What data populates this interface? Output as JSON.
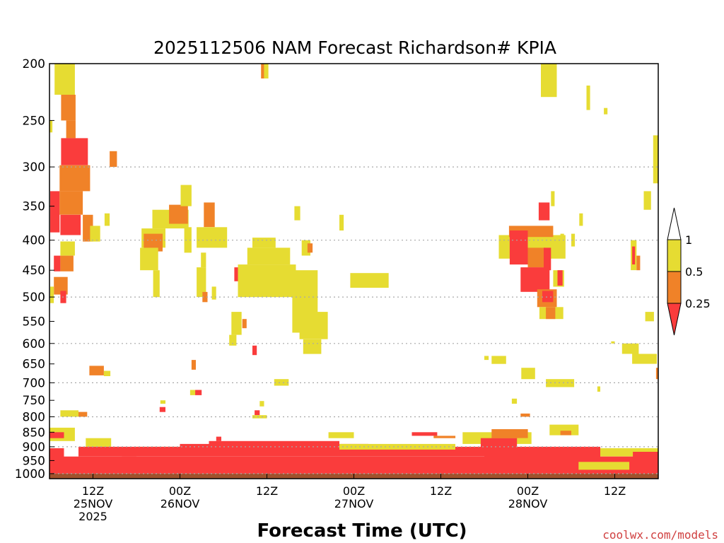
{
  "chart_data": {
    "type": "heatmap",
    "title": "2025112506 NAM Forecast Richardson# KPIA",
    "xlabel": "Forecast Time (UTC)",
    "ylabel": "",
    "y_scale": "log-pressure",
    "ylim": [
      1020,
      200
    ],
    "y_ticks": [
      200,
      250,
      300,
      350,
      400,
      450,
      500,
      550,
      600,
      650,
      700,
      750,
      800,
      850,
      900,
      950,
      1000
    ],
    "gridlines_at": [
      300,
      400,
      500,
      600,
      700,
      800,
      900,
      1000
    ],
    "xlim": [
      "2025-11-25 06Z",
      "2025-11-28 18Z"
    ],
    "x_ticks": [
      {
        "hour": 6,
        "line1": "12Z",
        "line2": "25NOV",
        "line3": "2025"
      },
      {
        "hour": 18,
        "line1": "00Z",
        "line2": "26NOV",
        "line3": ""
      },
      {
        "hour": 30,
        "line1": "12Z",
        "line2": "",
        "line3": ""
      },
      {
        "hour": 42,
        "line1": "00Z",
        "line2": "27NOV",
        "line3": ""
      },
      {
        "hour": 54,
        "line1": "12Z",
        "line2": "",
        "line3": ""
      },
      {
        "hour": 66,
        "line1": "00Z",
        "line2": "28NOV",
        "line3": ""
      },
      {
        "hour": 78,
        "line1": "12Z",
        "line2": "",
        "line3": ""
      }
    ],
    "legend": {
      "placement": "right",
      "levels": [
        "1",
        "0.5",
        "0.25"
      ],
      "bins": [
        {
          "range": ">1",
          "color": "#ffffff"
        },
        {
          "range": "0.5-1",
          "color": "#e6dc32"
        },
        {
          "range": "0.25-0.5",
          "color": "#f08228"
        },
        {
          "range": "<0.25",
          "color": "#fa3c3c"
        }
      ]
    },
    "colors": {
      "low": "#fa3c3c",
      "mid": "#f08228",
      "high": "#e6dc32",
      "ground": "#a0522d"
    },
    "cells": [
      {
        "t0": 0.7,
        "t1": 3.5,
        "p0": 200,
        "p1": 226,
        "c": "high"
      },
      {
        "t0": 1.6,
        "t1": 3.6,
        "p0": 226,
        "p1": 250,
        "c": "mid"
      },
      {
        "t0": 2.3,
        "t1": 3.6,
        "p0": 250,
        "p1": 268,
        "c": "mid"
      },
      {
        "t0": 1.6,
        "t1": 5.3,
        "p0": 268,
        "p1": 298,
        "c": "low"
      },
      {
        "t0": 1.4,
        "t1": 5.6,
        "p0": 298,
        "p1": 330,
        "c": "mid"
      },
      {
        "t0": 0.1,
        "t1": 1.4,
        "p0": 330,
        "p1": 388,
        "c": "low"
      },
      {
        "t0": 1.4,
        "t1": 4.6,
        "p0": 330,
        "p1": 362,
        "c": "mid"
      },
      {
        "t0": 1.5,
        "t1": 4.3,
        "p0": 362,
        "p1": 392,
        "c": "low"
      },
      {
        "t0": 4.6,
        "t1": 6.0,
        "p0": 362,
        "p1": 402,
        "c": "mid"
      },
      {
        "t0": 1.5,
        "t1": 3.5,
        "p0": 402,
        "p1": 425,
        "c": "high"
      },
      {
        "t0": 0.6,
        "t1": 1.5,
        "p0": 425,
        "p1": 452,
        "c": "low"
      },
      {
        "t0": 1.5,
        "t1": 3.3,
        "p0": 425,
        "p1": 452,
        "c": "mid"
      },
      {
        "t0": 0.6,
        "t1": 2.5,
        "p0": 462,
        "p1": 495,
        "c": "mid"
      },
      {
        "t0": 0.1,
        "t1": 0.6,
        "p0": 480,
        "p1": 512,
        "c": "high"
      },
      {
        "t0": 1.5,
        "t1": 2.3,
        "p0": 488,
        "p1": 512,
        "c": "low"
      },
      {
        "t0": 0.0,
        "t1": 0.4,
        "p0": 250,
        "p1": 262,
        "c": "high"
      },
      {
        "t0": 8.3,
        "t1": 9.3,
        "p0": 282,
        "p1": 300,
        "c": "mid"
      },
      {
        "t0": 7.6,
        "t1": 8.3,
        "p0": 360,
        "p1": 378,
        "c": "high"
      },
      {
        "t0": 5.6,
        "t1": 7.0,
        "p0": 378,
        "p1": 402,
        "c": "high"
      },
      {
        "t0": 14.2,
        "t1": 19.2,
        "p0": 355,
        "p1": 382,
        "c": "high"
      },
      {
        "t0": 16.5,
        "t1": 19.1,
        "p0": 348,
        "p1": 375,
        "c": "mid"
      },
      {
        "t0": 12.7,
        "t1": 16.0,
        "p0": 382,
        "p1": 412,
        "c": "high"
      },
      {
        "t0": 13.0,
        "t1": 15.6,
        "p0": 390,
        "p1": 418,
        "c": "mid"
      },
      {
        "t0": 12.5,
        "t1": 15.0,
        "p0": 412,
        "p1": 450,
        "c": "high"
      },
      {
        "t0": 14.3,
        "t1": 15.2,
        "p0": 450,
        "p1": 500,
        "c": "high"
      },
      {
        "t0": 18.1,
        "t1": 19.6,
        "p0": 322,
        "p1": 350,
        "c": "high"
      },
      {
        "t0": 21.3,
        "t1": 22.8,
        "p0": 345,
        "p1": 380,
        "c": "mid"
      },
      {
        "t0": 20.3,
        "t1": 24.5,
        "p0": 380,
        "p1": 412,
        "c": "high"
      },
      {
        "t0": 18.6,
        "t1": 19.6,
        "p0": 380,
        "p1": 420,
        "c": "high"
      },
      {
        "t0": 20.9,
        "t1": 21.6,
        "p0": 420,
        "p1": 445,
        "c": "high"
      },
      {
        "t0": 20.3,
        "t1": 21.6,
        "p0": 445,
        "p1": 500,
        "c": "high"
      },
      {
        "t0": 21.1,
        "t1": 21.8,
        "p0": 490,
        "p1": 510,
        "c": "mid"
      },
      {
        "t0": 22.4,
        "t1": 23.0,
        "p0": 480,
        "p1": 505,
        "c": "high"
      },
      {
        "t0": 26.0,
        "t1": 34.0,
        "p0": 440,
        "p1": 500,
        "c": "high"
      },
      {
        "t0": 27.3,
        "t1": 33.2,
        "p0": 412,
        "p1": 440,
        "c": "high"
      },
      {
        "t0": 28.0,
        "t1": 31.2,
        "p0": 396,
        "p1": 412,
        "c": "high"
      },
      {
        "t0": 25.5,
        "t1": 26.0,
        "p0": 445,
        "p1": 470,
        "c": "low"
      },
      {
        "t0": 33.5,
        "t1": 37.0,
        "p0": 450,
        "p1": 575,
        "c": "high"
      },
      {
        "t0": 34.5,
        "t1": 38.4,
        "p0": 530,
        "p1": 590,
        "c": "high"
      },
      {
        "t0": 35.0,
        "t1": 37.5,
        "p0": 590,
        "p1": 625,
        "c": "high"
      },
      {
        "t0": 25.1,
        "t1": 26.5,
        "p0": 530,
        "p1": 580,
        "c": "high"
      },
      {
        "t0": 26.6,
        "t1": 27.2,
        "p0": 545,
        "p1": 565,
        "c": "mid"
      },
      {
        "t0": 28.0,
        "t1": 28.6,
        "p0": 605,
        "p1": 628,
        "c": "low"
      },
      {
        "t0": 24.8,
        "t1": 25.8,
        "p0": 580,
        "p1": 605,
        "c": "high"
      },
      {
        "t0": 41.5,
        "t1": 46.8,
        "p0": 455,
        "p1": 482,
        "c": "high"
      },
      {
        "t0": 40.0,
        "t1": 40.6,
        "p0": 362,
        "p1": 385,
        "c": "high"
      },
      {
        "t0": 34.8,
        "t1": 36.0,
        "p0": 400,
        "p1": 425,
        "c": "high"
      },
      {
        "t0": 35.6,
        "t1": 36.3,
        "p0": 405,
        "p1": 420,
        "c": "mid"
      },
      {
        "t0": 33.8,
        "t1": 34.6,
        "p0": 350,
        "p1": 370,
        "c": "high"
      },
      {
        "t0": 29.2,
        "t1": 30.2,
        "p0": 200,
        "p1": 212,
        "c": "high"
      },
      {
        "t0": 29.2,
        "t1": 29.6,
        "p0": 200,
        "p1": 212,
        "c": "mid"
      },
      {
        "t0": 31.0,
        "t1": 33.0,
        "p0": 690,
        "p1": 708,
        "c": "high"
      },
      {
        "t0": 5.5,
        "t1": 7.5,
        "p0": 655,
        "p1": 680,
        "c": "mid"
      },
      {
        "t0": 7.5,
        "t1": 8.4,
        "p0": 668,
        "p1": 682,
        "c": "high"
      },
      {
        "t0": 67.8,
        "t1": 70.0,
        "p0": 200,
        "p1": 228,
        "c": "high"
      },
      {
        "t0": 74.1,
        "t1": 74.6,
        "p0": 218,
        "p1": 240,
        "c": "high"
      },
      {
        "t0": 76.5,
        "t1": 77.0,
        "p0": 238,
        "p1": 244,
        "c": "high"
      },
      {
        "t0": 62.0,
        "t1": 71.2,
        "p0": 392,
        "p1": 430,
        "c": "high"
      },
      {
        "t0": 63.4,
        "t1": 69.5,
        "p0": 378,
        "p1": 395,
        "c": "mid"
      },
      {
        "t0": 63.5,
        "t1": 66.0,
        "p0": 385,
        "p1": 440,
        "c": "low"
      },
      {
        "t0": 66.0,
        "t1": 68.4,
        "p0": 412,
        "p1": 445,
        "c": "mid"
      },
      {
        "t0": 65.0,
        "t1": 69.0,
        "p0": 445,
        "p1": 490,
        "c": "low"
      },
      {
        "t0": 68.2,
        "t1": 69.2,
        "p0": 412,
        "p1": 450,
        "c": "low"
      },
      {
        "t0": 67.3,
        "t1": 70.0,
        "p0": 485,
        "p1": 520,
        "c": "mid"
      },
      {
        "t0": 68.0,
        "t1": 69.5,
        "p0": 488,
        "p1": 510,
        "c": "low"
      },
      {
        "t0": 67.6,
        "t1": 70.9,
        "p0": 520,
        "p1": 545,
        "c": "high"
      },
      {
        "t0": 68.5,
        "t1": 69.8,
        "p0": 520,
        "p1": 545,
        "c": "mid"
      },
      {
        "t0": 69.5,
        "t1": 71.0,
        "p0": 450,
        "p1": 480,
        "c": "high"
      },
      {
        "t0": 70.1,
        "t1": 70.8,
        "p0": 450,
        "p1": 478,
        "c": "low"
      },
      {
        "t0": 67.5,
        "t1": 69.0,
        "p0": 345,
        "p1": 370,
        "c": "low"
      },
      {
        "t0": 69.2,
        "t1": 69.7,
        "p0": 330,
        "p1": 350,
        "c": "high"
      },
      {
        "t0": 73.1,
        "t1": 73.6,
        "p0": 360,
        "p1": 378,
        "c": "high"
      },
      {
        "t0": 70.5,
        "t1": 71.0,
        "p0": 390,
        "p1": 415,
        "c": "high"
      },
      {
        "t0": 72.0,
        "t1": 72.5,
        "p0": 390,
        "p1": 410,
        "c": "high"
      },
      {
        "t0": 80.2,
        "t1": 81.0,
        "p0": 400,
        "p1": 450,
        "c": "high"
      },
      {
        "t0": 80.4,
        "t1": 80.8,
        "p0": 410,
        "p1": 440,
        "c": "low"
      },
      {
        "t0": 81.0,
        "t1": 81.5,
        "p0": 425,
        "p1": 450,
        "c": "mid"
      },
      {
        "t0": 82.0,
        "t1": 83.0,
        "p0": 330,
        "p1": 355,
        "c": "high"
      },
      {
        "t0": 83.3,
        "t1": 84.0,
        "p0": 265,
        "p1": 320,
        "c": "high"
      },
      {
        "t0": 82.2,
        "t1": 83.4,
        "p0": 530,
        "p1": 550,
        "c": "high"
      },
      {
        "t0": 79.0,
        "t1": 81.3,
        "p0": 600,
        "p1": 625,
        "c": "high"
      },
      {
        "t0": 80.4,
        "t1": 83.8,
        "p0": 625,
        "p1": 650,
        "c": "high"
      },
      {
        "t0": 83.7,
        "t1": 84.0,
        "p0": 660,
        "p1": 690,
        "c": "mid"
      },
      {
        "t0": 77.5,
        "t1": 78.0,
        "p0": 595,
        "p1": 600,
        "c": "high"
      },
      {
        "t0": 75.6,
        "t1": 76.0,
        "p0": 710,
        "p1": 725,
        "c": "high"
      },
      {
        "t0": 61.0,
        "t1": 63.0,
        "p0": 630,
        "p1": 650,
        "c": "high"
      },
      {
        "t0": 65.1,
        "t1": 67.0,
        "p0": 660,
        "p1": 690,
        "c": "high"
      },
      {
        "t0": 68.5,
        "t1": 72.4,
        "p0": 690,
        "p1": 712,
        "c": "high"
      },
      {
        "t0": 60.0,
        "t1": 60.6,
        "p0": 630,
        "p1": 640,
        "c": "high"
      },
      {
        "t0": 63.8,
        "t1": 64.5,
        "p0": 745,
        "p1": 760,
        "c": "high"
      },
      {
        "t0": 0.0,
        "t1": 3.5,
        "p0": 835,
        "p1": 880,
        "c": "high"
      },
      {
        "t0": 0.0,
        "t1": 2.0,
        "p0": 850,
        "p1": 870,
        "c": "low"
      },
      {
        "t0": 1.5,
        "t1": 4.0,
        "p0": 780,
        "p1": 800,
        "c": "high"
      },
      {
        "t0": 4.0,
        "t1": 5.2,
        "p0": 785,
        "p1": 800,
        "c": "mid"
      },
      {
        "t0": 5.0,
        "t1": 8.5,
        "p0": 870,
        "p1": 900,
        "c": "high"
      },
      {
        "t0": 10.0,
        "t1": 12.0,
        "p0": 910,
        "p1": 935,
        "c": "low"
      },
      {
        "t0": 12.0,
        "t1": 18.0,
        "p0": 900,
        "p1": 925,
        "c": "high"
      },
      {
        "t0": 15.2,
        "t1": 16.0,
        "p0": 770,
        "p1": 785,
        "c": "low"
      },
      {
        "t0": 15.3,
        "t1": 16.0,
        "p0": 750,
        "p1": 760,
        "c": "high"
      },
      {
        "t0": 20.1,
        "t1": 21.0,
        "p0": 720,
        "p1": 735,
        "c": "low"
      },
      {
        "t0": 19.4,
        "t1": 20.1,
        "p0": 720,
        "p1": 735,
        "c": "high"
      },
      {
        "t0": 19.6,
        "t1": 20.2,
        "p0": 640,
        "p1": 665,
        "c": "mid"
      },
      {
        "t0": 23.0,
        "t1": 23.7,
        "p0": 865,
        "p1": 880,
        "c": "low"
      },
      {
        "t0": 28.3,
        "t1": 29.0,
        "p0": 780,
        "p1": 795,
        "c": "low"
      },
      {
        "t0": 28.0,
        "t1": 30.0,
        "p0": 795,
        "p1": 805,
        "c": "high"
      },
      {
        "t0": 29.0,
        "t1": 29.6,
        "p0": 752,
        "p1": 768,
        "c": "high"
      },
      {
        "t0": 65.0,
        "t1": 66.3,
        "p0": 790,
        "p1": 800,
        "c": "mid"
      },
      {
        "t0": 69.0,
        "t1": 73.0,
        "p0": 825,
        "p1": 860,
        "c": "high"
      },
      {
        "t0": 70.5,
        "t1": 72.0,
        "p0": 845,
        "p1": 860,
        "c": "mid"
      },
      {
        "t0": 57.0,
        "t1": 66.5,
        "p0": 850,
        "p1": 890,
        "c": "high"
      },
      {
        "t0": 61.0,
        "t1": 66.0,
        "p0": 840,
        "p1": 870,
        "c": "mid"
      },
      {
        "t0": 59.5,
        "t1": 64.5,
        "p0": 870,
        "p1": 905,
        "c": "low"
      },
      {
        "t0": 50.0,
        "t1": 53.5,
        "p0": 850,
        "p1": 862,
        "c": "low"
      },
      {
        "t0": 53.0,
        "t1": 56.0,
        "p0": 862,
        "p1": 870,
        "c": "mid"
      },
      {
        "t0": 38.5,
        "t1": 42.0,
        "p0": 850,
        "p1": 870,
        "c": "high"
      },
      {
        "t0": 76.0,
        "t1": 84.0,
        "p0": 905,
        "p1": 935,
        "c": "high"
      },
      {
        "t0": 80.5,
        "t1": 84.0,
        "p0": 918,
        "p1": 945,
        "c": "low"
      },
      {
        "t0": 78.5,
        "t1": 81.0,
        "p0": 950,
        "p1": 960,
        "c": "mid"
      },
      {
        "t0": 0.0,
        "t1": 2.0,
        "p0": 905,
        "p1": 950,
        "c": "low"
      },
      {
        "t0": 0.0,
        "t1": 84.0,
        "p0": 935,
        "p1": 1000,
        "c": "low"
      },
      {
        "t0": 4.0,
        "t1": 60.0,
        "p0": 900,
        "p1": 935,
        "c": "low"
      },
      {
        "t0": 22.0,
        "t1": 40.0,
        "p0": 880,
        "p1": 900,
        "c": "low"
      },
      {
        "t0": 18.0,
        "t1": 44.0,
        "p0": 890,
        "p1": 905,
        "c": "low"
      },
      {
        "t0": 40.0,
        "t1": 56.0,
        "p0": 890,
        "p1": 910,
        "c": "high"
      },
      {
        "t0": 60.0,
        "t1": 76.0,
        "p0": 900,
        "p1": 945,
        "c": "low"
      },
      {
        "t0": 72.0,
        "t1": 84.0,
        "p0": 945,
        "p1": 1000,
        "c": "low"
      },
      {
        "t0": 73.0,
        "t1": 80.0,
        "p0": 955,
        "p1": 985,
        "c": "high"
      }
    ]
  },
  "credit": "coolwx.com/models"
}
